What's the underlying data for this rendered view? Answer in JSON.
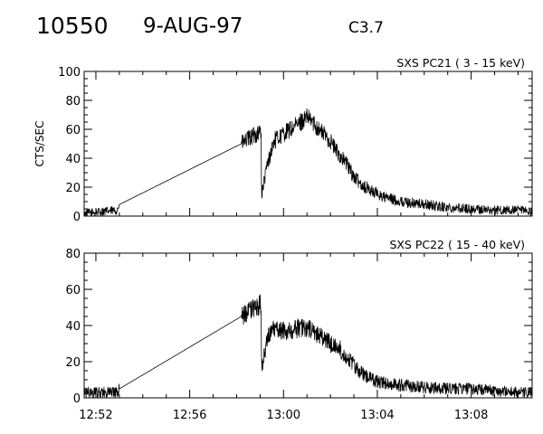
{
  "header": {
    "event_id": "10550",
    "date": "9-AUG-97",
    "flare_class": "C3.7"
  },
  "chart_data": [
    {
      "type": "line",
      "title": "SXS PC21  (  3 - 15 keV)",
      "ylabel": "CTS/SEC",
      "xlabel": "",
      "x_unit": "minutes after 12:50",
      "xlim": [
        1.5,
        20.6
      ],
      "ylim": [
        0,
        100
      ],
      "yticks": [
        0,
        20,
        40,
        60,
        80,
        100
      ],
      "xticks": [
        "12:52",
        "12:56",
        "13:00",
        "13:04",
        "13:08"
      ],
      "xtick_values": [
        2,
        6,
        10,
        14,
        18
      ],
      "series": [
        {
          "name": "",
          "x": [
            1.5,
            2.2,
            2.9,
            3.0,
            8.2,
            9.05,
            9.06,
            9.3,
            9.6,
            10.0,
            10.3,
            10.6,
            10.8,
            11.0,
            11.2,
            11.4,
            11.7,
            12.0,
            12.3,
            12.7,
            13.0,
            13.4,
            13.8,
            14.3,
            15.0,
            16.0,
            17.0,
            18.0,
            19.0,
            20.0,
            20.6
          ],
          "values": [
            2,
            3,
            4,
            8,
            50,
            59,
            14,
            35,
            52,
            57,
            60,
            63,
            66,
            68,
            66,
            62,
            57,
            52,
            44,
            36,
            27,
            21,
            17,
            13,
            10,
            8,
            6,
            5,
            4,
            4,
            3
          ]
        }
      ]
    },
    {
      "type": "line",
      "title": "SXS PC22  ( 15 - 40 keV)",
      "ylabel": "",
      "xlabel": "",
      "x_unit": "minutes after 12:50",
      "xlim": [
        1.5,
        20.6
      ],
      "ylim": [
        0,
        80
      ],
      "yticks": [
        0,
        20,
        40,
        60,
        80
      ],
      "xticks": [
        "12:52",
        "12:56",
        "13:00",
        "13:04",
        "13:08"
      ],
      "xtick_values": [
        2,
        6,
        10,
        14,
        18
      ],
      "series": [
        {
          "name": "",
          "x": [
            1.5,
            2.2,
            2.9,
            3.0,
            8.2,
            9.05,
            9.06,
            9.3,
            9.6,
            10.0,
            10.4,
            10.8,
            11.2,
            11.6,
            12.0,
            12.4,
            12.8,
            13.2,
            13.6,
            14.0,
            14.5,
            15.0,
            16.0,
            17.0,
            18.0,
            19.0,
            20.0,
            20.6
          ],
          "values": [
            3,
            3,
            3,
            5,
            45,
            52,
            15,
            33,
            38,
            37,
            38,
            39,
            37,
            34,
            30,
            27,
            21,
            15,
            11,
            9,
            8,
            7,
            6,
            5,
            5,
            4,
            3,
            3
          ]
        }
      ]
    }
  ]
}
